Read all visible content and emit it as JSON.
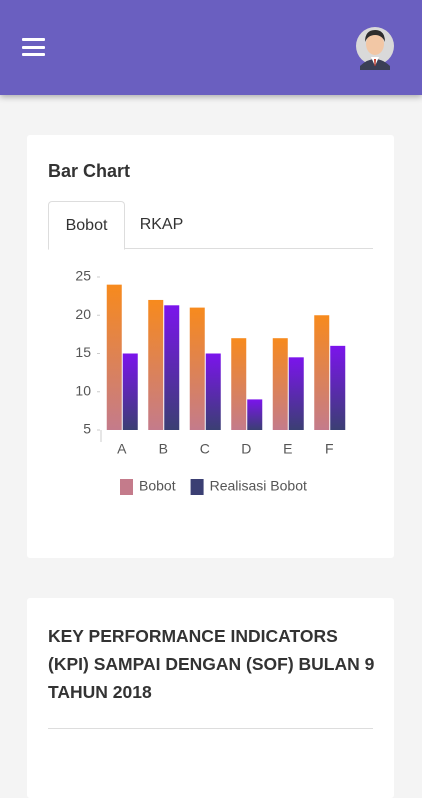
{
  "chart_data": {
    "type": "bar",
    "title": "Bar Chart",
    "tabs": [
      "Bobot",
      "RKAP"
    ],
    "active_tab": 0,
    "categories": [
      "A",
      "B",
      "C",
      "D",
      "E",
      "F"
    ],
    "series": [
      {
        "name": "Bobot",
        "color": "#c47b8b",
        "top_color": "#f78a1d",
        "values": [
          24,
          22,
          21,
          17,
          17,
          20
        ]
      },
      {
        "name": "Realisasi Bobot",
        "color": "#3b3f73",
        "top_color": "#7b14ec",
        "values": [
          15,
          21.3,
          15,
          9,
          14.5,
          16
        ]
      }
    ],
    "ylim": [
      5,
      25
    ],
    "yticks": [
      5,
      10,
      15,
      20,
      25
    ],
    "grid": false
  },
  "kpi": {
    "title": "KEY PERFORMANCE INDICATORS (KPI) SAMPAI DENGAN (SOF) BULAN 9 TAHUN 2018"
  }
}
